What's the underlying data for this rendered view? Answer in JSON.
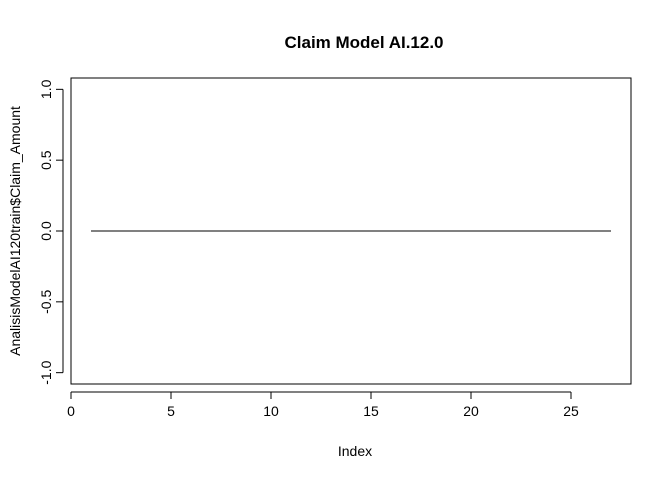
{
  "chart_data": {
    "type": "line",
    "title": "Claim Model AI.12.0",
    "xlabel": "Index",
    "ylabel": "AnalisisModelAI120train$Claim_Amount",
    "xlim": [
      0,
      28
    ],
    "ylim": [
      -1.08,
      1.08
    ],
    "xticks": [
      0,
      5,
      10,
      15,
      20,
      25
    ],
    "yticks": [
      -1.0,
      -0.5,
      0.0,
      0.5,
      1.0
    ],
    "xtick_labels": [
      "0",
      "5",
      "10",
      "15",
      "20",
      "25"
    ],
    "ytick_labels": [
      "-1.0",
      "-0.5",
      "0.0",
      "0.5",
      "1.0"
    ],
    "grid": false,
    "series": [
      {
        "x": [
          1,
          2,
          3,
          4,
          5,
          6,
          7,
          8,
          9,
          10,
          11,
          12,
          13,
          14,
          15,
          16,
          17,
          18,
          19,
          20,
          21,
          22,
          23,
          24,
          25,
          26,
          27
        ],
        "values": [
          0,
          0,
          0,
          0,
          0,
          0,
          0,
          0,
          0,
          0,
          0,
          0,
          0,
          0,
          0,
          0,
          0,
          0,
          0,
          0,
          0,
          0,
          0,
          0,
          0,
          0,
          0
        ],
        "color": "#000000"
      }
    ]
  }
}
